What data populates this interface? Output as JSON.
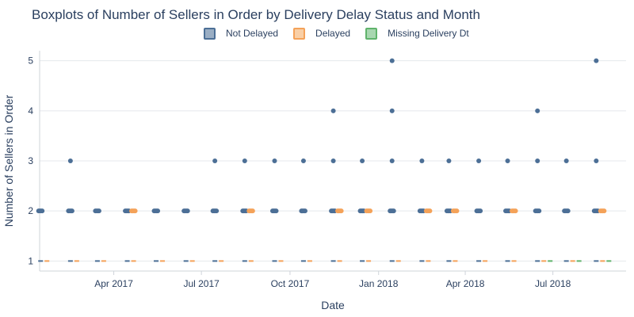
{
  "chart_data": {
    "type": "box",
    "title": "Boxplots of Number of Sellers in Order by Delivery Delay Status and Month",
    "xlabel": "Date",
    "ylabel": "Number of Sellers in Order",
    "xlim": [
      "2017-01-14",
      "2018-09-15"
    ],
    "ylim": [
      0.8,
      5.2
    ],
    "y_ticks": [
      1,
      2,
      3,
      4,
      5
    ],
    "x_ticks": [
      {
        "value": "2017-04-01",
        "label": "Apr 2017"
      },
      {
        "value": "2017-07-01",
        "label": "Jul 2017"
      },
      {
        "value": "2017-10-01",
        "label": "Oct 2017"
      },
      {
        "value": "2018-01-01",
        "label": "Jan 2018"
      },
      {
        "value": "2018-04-01",
        "label": "Apr 2018"
      },
      {
        "value": "2018-07-01",
        "label": "Jul 2018"
      }
    ],
    "grid": "horizontal",
    "legend_position": "top-center",
    "series": [
      {
        "name": "Not Delayed",
        "color": "#4c6f96",
        "boxes": [
          {
            "month": "2017-01",
            "median": 1,
            "outliers": [
              2
            ]
          },
          {
            "month": "2017-02",
            "median": 1,
            "outliers": [
              2,
              3
            ]
          },
          {
            "month": "2017-03",
            "median": 1,
            "outliers": [
              2
            ]
          },
          {
            "month": "2017-04",
            "median": 1,
            "outliers": [
              2
            ]
          },
          {
            "month": "2017-05",
            "median": 1,
            "outliers": [
              2
            ]
          },
          {
            "month": "2017-06",
            "median": 1,
            "outliers": [
              2
            ]
          },
          {
            "month": "2017-07",
            "median": 1,
            "outliers": [
              2,
              3
            ]
          },
          {
            "month": "2017-08",
            "median": 1,
            "outliers": [
              2,
              3
            ]
          },
          {
            "month": "2017-09",
            "median": 1,
            "outliers": [
              2,
              3
            ]
          },
          {
            "month": "2017-10",
            "median": 1,
            "outliers": [
              2,
              3
            ]
          },
          {
            "month": "2017-11",
            "median": 1,
            "outliers": [
              2,
              3,
              4
            ]
          },
          {
            "month": "2017-12",
            "median": 1,
            "outliers": [
              2,
              3
            ]
          },
          {
            "month": "2018-01",
            "median": 1,
            "outliers": [
              2,
              3,
              4,
              5
            ]
          },
          {
            "month": "2018-02",
            "median": 1,
            "outliers": [
              2,
              3
            ]
          },
          {
            "month": "2018-03",
            "median": 1,
            "outliers": [
              2,
              3
            ]
          },
          {
            "month": "2018-04",
            "median": 1,
            "outliers": [
              2,
              3
            ]
          },
          {
            "month": "2018-05",
            "median": 1,
            "outliers": [
              2,
              3
            ]
          },
          {
            "month": "2018-06",
            "median": 1,
            "outliers": [
              2,
              3,
              4
            ]
          },
          {
            "month": "2018-07",
            "median": 1,
            "outliers": [
              2,
              3
            ]
          },
          {
            "month": "2018-08",
            "median": 1,
            "outliers": [
              2,
              3,
              5
            ]
          }
        ]
      },
      {
        "name": "Delayed",
        "color": "#f4a259",
        "boxes": [
          {
            "month": "2017-01",
            "median": 1,
            "outliers": []
          },
          {
            "month": "2017-02",
            "median": 1,
            "outliers": []
          },
          {
            "month": "2017-03",
            "median": 1,
            "outliers": []
          },
          {
            "month": "2017-04",
            "median": 1,
            "outliers": [
              2
            ]
          },
          {
            "month": "2017-05",
            "median": 1,
            "outliers": []
          },
          {
            "month": "2017-06",
            "median": 1,
            "outliers": []
          },
          {
            "month": "2017-07",
            "median": 1,
            "outliers": []
          },
          {
            "month": "2017-08",
            "median": 1,
            "outliers": [
              2
            ]
          },
          {
            "month": "2017-09",
            "median": 1,
            "outliers": []
          },
          {
            "month": "2017-10",
            "median": 1,
            "outliers": []
          },
          {
            "month": "2017-11",
            "median": 1,
            "outliers": [
              2
            ]
          },
          {
            "month": "2017-12",
            "median": 1,
            "outliers": [
              2
            ]
          },
          {
            "month": "2018-01",
            "median": 1,
            "outliers": []
          },
          {
            "month": "2018-02",
            "median": 1,
            "outliers": [
              2
            ]
          },
          {
            "month": "2018-03",
            "median": 1,
            "outliers": [
              2
            ]
          },
          {
            "month": "2018-04",
            "median": 1,
            "outliers": []
          },
          {
            "month": "2018-05",
            "median": 1,
            "outliers": [
              2
            ]
          },
          {
            "month": "2018-06",
            "median": 1,
            "outliers": []
          },
          {
            "month": "2018-07",
            "median": 1,
            "outliers": []
          },
          {
            "month": "2018-08",
            "median": 1,
            "outliers": [
              2
            ]
          }
        ]
      },
      {
        "name": "Missing Delivery Dt",
        "color": "#5fb36b",
        "boxes": [
          {
            "month": "2018-06",
            "median": 1,
            "outliers": []
          },
          {
            "month": "2018-07",
            "median": 1,
            "outliers": []
          },
          {
            "month": "2018-08",
            "median": 1,
            "outliers": []
          }
        ]
      }
    ]
  }
}
